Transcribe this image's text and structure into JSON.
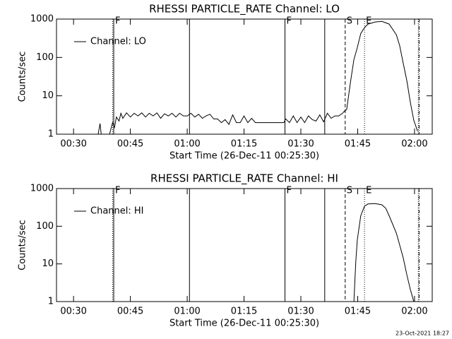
{
  "chart_data": [
    {
      "type": "line",
      "title": "RHESSI PARTICLE_RATE Channel: LO",
      "x_label": "Start Time (26-Dec-11 00:25:30)",
      "y_label": "Counts/sec",
      "log_y": true,
      "legend": "upper left",
      "xlim": [
        25.5,
        124.67
      ],
      "ylim": [
        1,
        1000
      ],
      "xticks": [
        {
          "value": 30,
          "label": "00:30"
        },
        {
          "value": 45,
          "label": "00:45"
        },
        {
          "value": 60,
          "label": "01:00"
        },
        {
          "value": 75,
          "label": "01:15"
        },
        {
          "value": 90,
          "label": "01:30"
        },
        {
          "value": 105,
          "label": "01:45"
        },
        {
          "value": 120,
          "label": "02:00"
        }
      ],
      "yticks": [
        1,
        10,
        100,
        1000
      ],
      "markers": [
        {
          "x": 40.3,
          "style": "dotted"
        },
        {
          "x": 40.6,
          "style": "solid",
          "label": "F"
        },
        {
          "x": 60.6,
          "style": "solid"
        },
        {
          "x": 85.8,
          "style": "solid",
          "label": "F"
        },
        {
          "x": 96.3,
          "style": "solid"
        },
        {
          "x": 101.7,
          "style": "dashed",
          "label": "S"
        },
        {
          "x": 106.8,
          "style": "dotted",
          "label": "E"
        },
        {
          "x": 121.0,
          "style": "dotted"
        },
        {
          "x": 121.2,
          "style": "dashdot"
        }
      ],
      "series": [
        {
          "name": "Channel: LO",
          "color": "#000000",
          "x": [
            36.5,
            37,
            37.3,
            39.5,
            40.3,
            40.8,
            41.3,
            42,
            42.5,
            43,
            44,
            45,
            46,
            47,
            48,
            49,
            50,
            51,
            52,
            53,
            54,
            55,
            56,
            57,
            58,
            59,
            60,
            61,
            62,
            63,
            64,
            65,
            66,
            67,
            68,
            69,
            70,
            71,
            72,
            73,
            74,
            75,
            76,
            77,
            78,
            79,
            85.5,
            86,
            87,
            88,
            89,
            90,
            91,
            92,
            93,
            94,
            95,
            96,
            97,
            98,
            99,
            100,
            101,
            101.5,
            102.1,
            103.0,
            104.0,
            104.9,
            105.8,
            106.8,
            107.7,
            109.6,
            111.4,
            113.3,
            115.2,
            116.1,
            117.0,
            118.0,
            118.9,
            119.8,
            120.8
          ],
          "values": [
            1,
            1.9,
            1,
            1,
            2,
            1.5,
            2.8,
            2.2,
            3.5,
            2.6,
            3.6,
            2.8,
            3.5,
            3,
            3.6,
            2.8,
            3.5,
            3,
            3.6,
            2.6,
            3.4,
            3,
            3.5,
            2.8,
            3.5,
            3,
            3,
            3.5,
            2.8,
            3.3,
            2.6,
            3,
            3.3,
            2.5,
            2.5,
            2,
            2.4,
            1.8,
            3.2,
            2,
            2,
            3,
            2,
            2.6,
            2,
            2,
            2,
            2.5,
            2,
            3,
            2,
            2.8,
            2,
            3,
            2.4,
            2.2,
            3.2,
            2.1,
            3.5,
            2.6,
            3,
            3,
            3.5,
            4,
            4.4,
            20,
            88,
            180,
            420,
            600,
            740,
            840,
            870,
            740,
            390,
            200,
            71,
            24,
            6.8,
            2.3,
            1.2
          ]
        }
      ]
    },
    {
      "type": "line",
      "title": "RHESSI PARTICLE_RATE Channel: HI",
      "x_label": "Start Time (26-Dec-11 00:25:30)",
      "y_label": "Counts/sec",
      "log_y": true,
      "legend": "upper left",
      "xlim": [
        25.5,
        124.67
      ],
      "ylim": [
        1,
        1000
      ],
      "xticks": [
        {
          "value": 30,
          "label": "00:30"
        },
        {
          "value": 45,
          "label": "00:45"
        },
        {
          "value": 60,
          "label": "01:00"
        },
        {
          "value": 75,
          "label": "01:15"
        },
        {
          "value": 90,
          "label": "01:30"
        },
        {
          "value": 105,
          "label": "01:45"
        },
        {
          "value": 120,
          "label": "02:00"
        }
      ],
      "yticks": [
        1,
        10,
        100,
        1000
      ],
      "markers": [
        {
          "x": 40.3,
          "style": "dotted"
        },
        {
          "x": 40.6,
          "style": "solid",
          "label": "F"
        },
        {
          "x": 60.6,
          "style": "solid"
        },
        {
          "x": 85.8,
          "style": "solid",
          "label": "F"
        },
        {
          "x": 96.3,
          "style": "solid"
        },
        {
          "x": 101.7,
          "style": "dashed",
          "label": "S"
        },
        {
          "x": 106.8,
          "style": "dotted",
          "label": "E"
        },
        {
          "x": 121.0,
          "style": "dotted"
        },
        {
          "x": 121.2,
          "style": "dashdot"
        }
      ],
      "series": [
        {
          "name": "Channel: HI",
          "color": "#000000",
          "x": [
            104.0,
            104.5,
            104.9,
            105.8,
            106.8,
            107.7,
            109.6,
            111.4,
            112.4,
            113.3,
            115.2,
            117.0,
            118.0,
            118.9,
            119.8
          ],
          "values": [
            1,
            11.7,
            43,
            190,
            340,
            390,
            400,
            370,
            300,
            190,
            66,
            14.6,
            5,
            2.1,
            1
          ]
        }
      ]
    }
  ],
  "footer": "23-Oct-2021 18:27"
}
